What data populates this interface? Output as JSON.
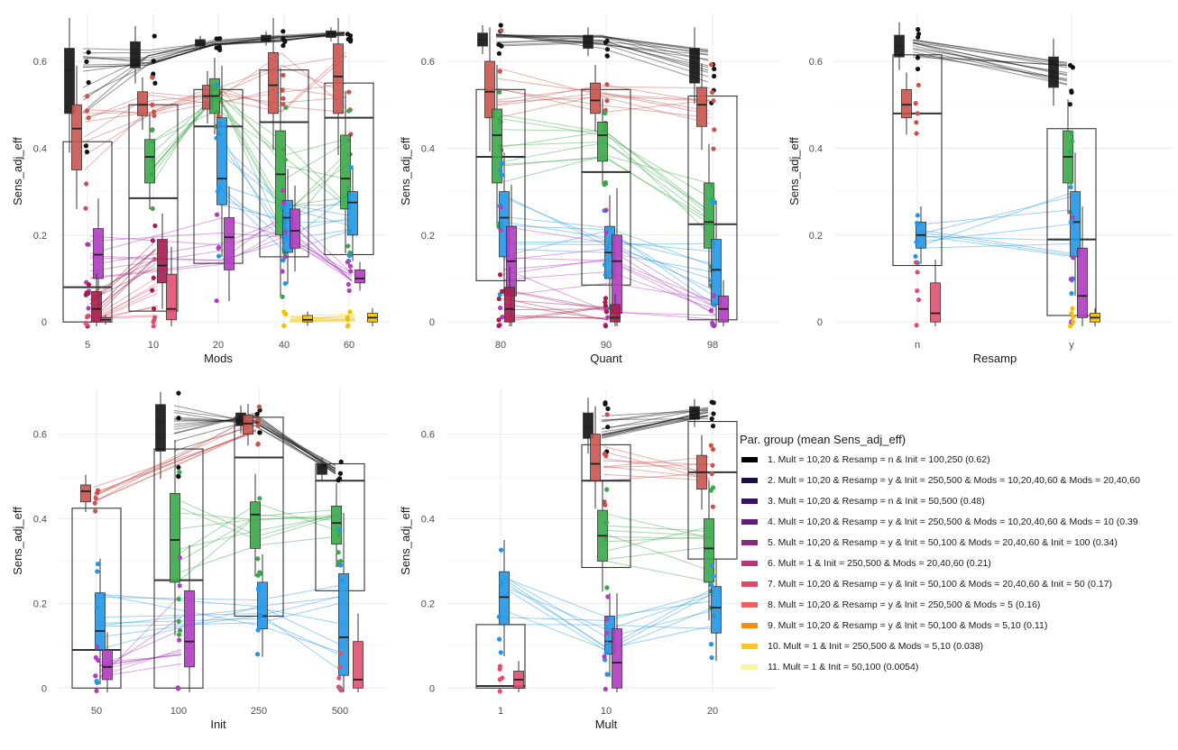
{
  "chart_data": [
    {
      "type": "box",
      "xlabel": "Mods",
      "ylabel": "Sens_adj_eff",
      "categories": [
        "5",
        "10",
        "20",
        "40",
        "60"
      ],
      "y_ticks": [
        "0",
        "0.2",
        "0.4",
        "0.6"
      ],
      "ylim": [
        -0.01,
        0.71
      ],
      "grid": true,
      "overall_boxes": [
        {
          "category": "5",
          "q1": 0.0,
          "median": 0.08,
          "q3": 0.415
        },
        {
          "category": "10",
          "q1": 0.025,
          "median": 0.285,
          "q3": 0.5
        },
        {
          "category": "20",
          "q1": 0.135,
          "median": 0.45,
          "q3": 0.535
        },
        {
          "category": "40",
          "q1": 0.15,
          "median": 0.46,
          "q3": 0.58
        },
        {
          "category": "60",
          "q1": 0.155,
          "median": 0.47,
          "q3": 0.55
        }
      ],
      "groups": [
        {
          "group": 1,
          "boxes": [
            {
              "x": "5",
              "q1": 0.48,
              "median": 0.58,
              "q3": 0.63
            },
            {
              "x": "10",
              "q1": 0.585,
              "median": 0.615,
              "q3": 0.645
            },
            {
              "x": "20",
              "q1": 0.635,
              "median": 0.645,
              "q3": 0.65
            },
            {
              "x": "40",
              "q1": 0.645,
              "median": 0.655,
              "q3": 0.66
            },
            {
              "x": "60",
              "q1": 0.655,
              "median": 0.66,
              "q3": 0.67
            }
          ]
        },
        {
          "group": 6,
          "boxes": [
            {
              "x": "5",
              "q1": 0.35,
              "median": 0.445,
              "q3": 0.5
            },
            {
              "x": "10",
              "q1": 0.475,
              "median": 0.5,
              "q3": 0.53
            },
            {
              "x": "20",
              "q1": 0.49,
              "median": 0.52,
              "q3": 0.545
            },
            {
              "x": "40",
              "q1": 0.48,
              "median": 0.545,
              "q3": 0.62
            },
            {
              "x": "60",
              "q1": 0.48,
              "median": 0.565,
              "q3": 0.64
            }
          ]
        },
        {
          "group": 4,
          "boxes": [
            {
              "x": "10",
              "q1": 0.32,
              "median": 0.38,
              "q3": 0.42
            },
            {
              "x": "20",
              "q1": 0.48,
              "median": 0.52,
              "q3": 0.56
            },
            {
              "x": "40",
              "q1": 0.2,
              "median": 0.34,
              "q3": 0.44
            },
            {
              "x": "60",
              "q1": 0.26,
              "median": 0.33,
              "q3": 0.43
            }
          ]
        },
        {
          "group": 3,
          "boxes": [
            {
              "x": "20",
              "q1": 0.27,
              "median": 0.33,
              "q3": 0.47
            },
            {
              "x": "40",
              "q1": 0.16,
              "median": 0.24,
              "q3": 0.28
            },
            {
              "x": "60",
              "q1": 0.2,
              "median": 0.275,
              "q3": 0.3
            }
          ]
        },
        {
          "group": 5,
          "boxes": [
            {
              "x": "5",
              "q1": 0.1,
              "median": 0.155,
              "q3": 0.215
            },
            {
              "x": "20",
              "q1": 0.12,
              "median": 0.195,
              "q3": 0.24
            },
            {
              "x": "40",
              "q1": 0.17,
              "median": 0.21,
              "q3": 0.26
            },
            {
              "x": "60",
              "q1": 0.09,
              "median": 0.1,
              "q3": 0.12
            }
          ]
        },
        {
          "group": 7,
          "boxes": [
            {
              "x": "5",
              "q1": 0.0,
              "median": 0.03,
              "q3": 0.07
            },
            {
              "x": "10",
              "q1": 0.09,
              "median": 0.13,
              "q3": 0.19
            }
          ]
        },
        {
          "group": 8,
          "boxes": [
            {
              "x": "5",
              "q1": 0.0,
              "median": 0.005,
              "q3": 0.01
            },
            {
              "x": "10",
              "q1": 0.005,
              "median": 0.03,
              "q3": 0.11
            }
          ]
        },
        {
          "group": 10,
          "boxes": [
            {
              "x": "40",
              "q1": 0.0,
              "median": 0.005,
              "q3": 0.015
            },
            {
              "x": "60",
              "q1": 0.0,
              "median": 0.01,
              "q3": 0.02
            }
          ]
        }
      ]
    },
    {
      "type": "box",
      "xlabel": "Quant",
      "ylabel": "Sens_adj_eff",
      "categories": [
        "80",
        "90",
        "98"
      ],
      "y_ticks": [
        "0",
        "0.2",
        "0.4",
        "0.6"
      ],
      "ylim": [
        -0.01,
        0.71
      ],
      "grid": true,
      "overall_boxes": [
        {
          "category": "80",
          "q1": 0.095,
          "median": 0.38,
          "q3": 0.535
        },
        {
          "category": "90",
          "q1": 0.085,
          "median": 0.345,
          "q3": 0.535
        },
        {
          "category": "98",
          "q1": 0.005,
          "median": 0.225,
          "q3": 0.52
        }
      ],
      "groups": [
        {
          "group": 1,
          "boxes": [
            {
              "x": "80",
              "q1": 0.635,
              "median": 0.65,
              "q3": 0.665
            },
            {
              "x": "90",
              "q1": 0.63,
              "median": 0.64,
              "q3": 0.66
            },
            {
              "x": "98",
              "q1": 0.55,
              "median": 0.59,
              "q3": 0.63
            }
          ]
        },
        {
          "group": 6,
          "boxes": [
            {
              "x": "80",
              "q1": 0.47,
              "median": 0.53,
              "q3": 0.6
            },
            {
              "x": "90",
              "q1": 0.48,
              "median": 0.51,
              "q3": 0.55
            },
            {
              "x": "98",
              "q1": 0.45,
              "median": 0.5,
              "q3": 0.54
            }
          ]
        },
        {
          "group": 4,
          "boxes": [
            {
              "x": "80",
              "q1": 0.32,
              "median": 0.43,
              "q3": 0.49
            },
            {
              "x": "90",
              "q1": 0.37,
              "median": 0.43,
              "q3": 0.46
            },
            {
              "x": "98",
              "q1": 0.17,
              "median": 0.23,
              "q3": 0.32
            }
          ]
        },
        {
          "group": 3,
          "boxes": [
            {
              "x": "80",
              "q1": 0.15,
              "median": 0.24,
              "q3": 0.3
            },
            {
              "x": "90",
              "q1": 0.1,
              "median": 0.16,
              "q3": 0.22
            },
            {
              "x": "98",
              "q1": 0.04,
              "median": 0.12,
              "q3": 0.19
            }
          ]
        },
        {
          "group": 5,
          "boxes": [
            {
              "x": "80",
              "q1": 0.06,
              "median": 0.14,
              "q3": 0.22
            },
            {
              "x": "90",
              "q1": 0.02,
              "median": 0.14,
              "q3": 0.2
            },
            {
              "x": "98",
              "q1": 0.0,
              "median": 0.03,
              "q3": 0.06
            }
          ]
        },
        {
          "group": 7,
          "boxes": [
            {
              "x": "80",
              "q1": 0.0,
              "median": 0.03,
              "q3": 0.08
            },
            {
              "x": "90",
              "q1": 0.0,
              "median": 0.01,
              "q3": 0.04
            }
          ]
        }
      ]
    },
    {
      "type": "box",
      "xlabel": "Resamp",
      "ylabel": "Sens_adj_eff",
      "categories": [
        "n",
        "y"
      ],
      "y_ticks": [
        "0",
        "0.2",
        "0.4",
        "0.6"
      ],
      "ylim": [
        -0.01,
        0.71
      ],
      "grid": true,
      "overall_boxes": [
        {
          "category": "n",
          "q1": 0.13,
          "median": 0.48,
          "q3": 0.615
        },
        {
          "category": "y",
          "q1": 0.015,
          "median": 0.19,
          "q3": 0.445
        }
      ],
      "groups": [
        {
          "group": 1,
          "boxes": [
            {
              "x": "n",
              "q1": 0.61,
              "median": 0.635,
              "q3": 0.66
            },
            {
              "x": "y",
              "q1": 0.54,
              "median": 0.57,
              "q3": 0.61
            }
          ]
        },
        {
          "group": 6,
          "boxes": [
            {
              "x": "n",
              "q1": 0.47,
              "median": 0.5,
              "q3": 0.535
            }
          ]
        },
        {
          "group": 4,
          "boxes": [
            {
              "x": "y",
              "q1": 0.32,
              "median": 0.38,
              "q3": 0.44
            }
          ]
        },
        {
          "group": 3,
          "boxes": [
            {
              "x": "n",
              "q1": 0.17,
              "median": 0.2,
              "q3": 0.23
            },
            {
              "x": "y",
              "q1": 0.15,
              "median": 0.23,
              "q3": 0.3
            }
          ]
        },
        {
          "group": 5,
          "boxes": [
            {
              "x": "y",
              "q1": 0.01,
              "median": 0.06,
              "q3": 0.17
            }
          ]
        },
        {
          "group": 8,
          "boxes": [
            {
              "x": "n",
              "q1": 0.0,
              "median": 0.02,
              "q3": 0.09
            }
          ]
        },
        {
          "group": 10,
          "boxes": [
            {
              "x": "y",
              "q1": 0.0,
              "median": 0.01,
              "q3": 0.02
            }
          ]
        }
      ]
    },
    {
      "type": "box",
      "xlabel": "Init",
      "ylabel": "Sens_adj_eff",
      "categories": [
        "50",
        "100",
        "250",
        "500"
      ],
      "y_ticks": [
        "0",
        "0.2",
        "0.4",
        "0.6"
      ],
      "ylim": [
        -0.01,
        0.71
      ],
      "grid": true,
      "overall_boxes": [
        {
          "category": "50",
          "q1": 0.0,
          "median": 0.09,
          "q3": 0.425
        },
        {
          "category": "100",
          "q1": 0.0,
          "median": 0.255,
          "q3": 0.565
        },
        {
          "category": "250",
          "q1": 0.17,
          "median": 0.545,
          "q3": 0.64
        },
        {
          "category": "500",
          "q1": 0.23,
          "median": 0.49,
          "q3": 0.53
        }
      ],
      "groups": [
        {
          "group": 1,
          "boxes": [
            {
              "x": "100",
              "q1": 0.56,
              "median": 0.63,
              "q3": 0.67
            },
            {
              "x": "250",
              "q1": 0.62,
              "median": 0.64,
              "q3": 0.65
            },
            {
              "x": "500",
              "q1": 0.505,
              "median": 0.52,
              "q3": 0.53
            }
          ]
        },
        {
          "group": 6,
          "boxes": [
            {
              "x": "50",
              "q1": 0.44,
              "median": 0.465,
              "q3": 0.48
            },
            {
              "x": "250",
              "q1": 0.6,
              "median": 0.625,
              "q3": 0.645
            }
          ]
        },
        {
          "group": 4,
          "boxes": [
            {
              "x": "100",
              "q1": 0.25,
              "median": 0.35,
              "q3": 0.46
            },
            {
              "x": "250",
              "q1": 0.33,
              "median": 0.41,
              "q3": 0.44
            },
            {
              "x": "500",
              "q1": 0.34,
              "median": 0.39,
              "q3": 0.43
            }
          ]
        },
        {
          "group": 3,
          "boxes": [
            {
              "x": "50",
              "q1": 0.09,
              "median": 0.135,
              "q3": 0.225
            },
            {
              "x": "250",
              "q1": 0.14,
              "median": 0.17,
              "q3": 0.25
            },
            {
              "x": "500",
              "q1": 0.03,
              "median": 0.12,
              "q3": 0.27
            }
          ]
        },
        {
          "group": 5,
          "boxes": [
            {
              "x": "50",
              "q1": 0.02,
              "median": 0.05,
              "q3": 0.09
            },
            {
              "x": "100",
              "q1": 0.05,
              "median": 0.11,
              "q3": 0.23
            }
          ]
        },
        {
          "group": 8,
          "boxes": [
            {
              "x": "500",
              "q1": 0.0,
              "median": 0.02,
              "q3": 0.11
            }
          ]
        }
      ]
    },
    {
      "type": "box",
      "xlabel": "Mult",
      "ylabel": "Sens_adj_eff",
      "categories": [
        "1",
        "10",
        "20"
      ],
      "y_ticks": [
        "0",
        "0.2",
        "0.4",
        "0.6"
      ],
      "ylim": [
        -0.01,
        0.71
      ],
      "grid": true,
      "overall_boxes": [
        {
          "category": "1",
          "q1": 0.0,
          "median": 0.005,
          "q3": 0.15
        },
        {
          "category": "10",
          "q1": 0.285,
          "median": 0.49,
          "q3": 0.575
        },
        {
          "category": "20",
          "q1": 0.305,
          "median": 0.51,
          "q3": 0.63
        }
      ],
      "groups": [
        {
          "group": 1,
          "boxes": [
            {
              "x": "10",
              "q1": 0.59,
              "median": 0.62,
              "q3": 0.65
            },
            {
              "x": "20",
              "q1": 0.635,
              "median": 0.65,
              "q3": 0.665
            }
          ]
        },
        {
          "group": 6,
          "boxes": [
            {
              "x": "10",
              "q1": 0.49,
              "median": 0.53,
              "q3": 0.6
            },
            {
              "x": "20",
              "q1": 0.47,
              "median": 0.51,
              "q3": 0.55
            }
          ]
        },
        {
          "group": 4,
          "boxes": [
            {
              "x": "10",
              "q1": 0.3,
              "median": 0.36,
              "q3": 0.42
            },
            {
              "x": "20",
              "q1": 0.25,
              "median": 0.33,
              "q3": 0.4
            }
          ]
        },
        {
          "group": 3,
          "boxes": [
            {
              "x": "1",
              "q1": 0.15,
              "median": 0.215,
              "q3": 0.275
            },
            {
              "x": "10",
              "q1": 0.08,
              "median": 0.11,
              "q3": 0.17
            },
            {
              "x": "20",
              "q1": 0.13,
              "median": 0.19,
              "q3": 0.24
            }
          ]
        },
        {
          "group": 5,
          "boxes": [
            {
              "x": "10",
              "q1": 0.0,
              "median": 0.06,
              "q3": 0.14
            }
          ]
        },
        {
          "group": 8,
          "boxes": [
            {
              "x": "1",
              "q1": 0.0,
              "median": 0.02,
              "q3": 0.04
            }
          ]
        }
      ]
    }
  ],
  "legend": {
    "title": "Par. group (mean Sens_adj_eff)",
    "items": [
      {
        "label": "1. Mult = 10,20 & Resamp = n & Init = 100,250 (0.62)",
        "color": "#000000"
      },
      {
        "label": "2. Mult = 10,20 & Resamp = y & Init = 250,500 & Mods = 10,20,40,60 & Mods = 20,40,60",
        "color": "#1b0c41"
      },
      {
        "label": "3. Mult = 10,20 & Resamp = n & Init = 50,500 (0.48)",
        "color": "#3b0f70"
      },
      {
        "label": "4. Mult = 10,20 & Resamp = y & Init = 250,500 & Mods = 10,20,40,60 & Mods = 10 (0.39",
        "color": "#641a80"
      },
      {
        "label": "5. Mult = 10,20 & Resamp = y & Init = 50,100 & Mods = 20,40,60 & Init = 100 (0.34)",
        "color": "#8c2981"
      },
      {
        "label": "6. Mult = 1 & Init = 250,500 & Mods = 20,40,60 (0.21)",
        "color": "#b73779"
      },
      {
        "label": "7. Mult = 10,20 & Resamp = y & Init = 50,100 & Mods = 20,40,60 & Init = 50 (0.17)",
        "color": "#de4968"
      },
      {
        "label": "8. Mult = 10,20 & Resamp = y & Init = 250,500 & Mods = 5 (0.16)",
        "color": "#f1605d"
      },
      {
        "label": "9. Mult = 10,20 & Resamp = y & Init = 50,100 & Mods = 5,10 (0.11)",
        "color": "#f98c0a"
      },
      {
        "label": "10. Mult = 1 & Init = 250,500 & Mods = 5,10 (0.038)",
        "color": "#fcc527"
      },
      {
        "label": "11. Mult = 1 & Init = 50,100 (0.0054)",
        "color": "#fcf4a3"
      }
    ]
  },
  "group_colors": {
    "1": "#111111",
    "3": "#2196e6",
    "4": "#3aa84a",
    "5": "#b03cc0",
    "6": "#c9544f",
    "7": "#a61c4c",
    "8": "#e0506e",
    "10": "#f4c100"
  }
}
